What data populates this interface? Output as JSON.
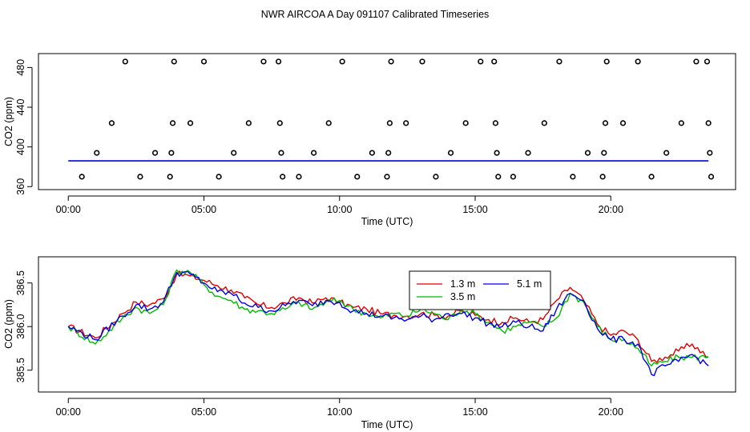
{
  "title": "NWR AIRCOA A  Day 091107  Calibrated Timeseries",
  "colors": {
    "red": "#e00000",
    "green": "#00bb00",
    "blue": "#0000e0",
    "axis": "#000000"
  },
  "chart_data": [
    {
      "type": "scatter",
      "xlabel": "Time (UTC)",
      "ylabel": "CO2 (ppm)",
      "xlim": [
        -1.1,
        24.6
      ],
      "ylim": [
        357,
        494
      ],
      "x_ticks": [
        0,
        5,
        10,
        15,
        20
      ],
      "x_tick_labels": [
        "00:00",
        "05:00",
        "10:00",
        "15:00",
        "20:00"
      ],
      "y_ticks": [
        360,
        400,
        440,
        480
      ],
      "y_tick_labels": [
        "360",
        "400",
        "440",
        "480"
      ],
      "reference_line": {
        "value": 386,
        "x_range": [
          0,
          23.6
        ],
        "color": "blue"
      },
      "points": [
        [
          0.5,
          370
        ],
        [
          1.05,
          394
        ],
        [
          1.6,
          424
        ],
        [
          2.1,
          486
        ],
        [
          2.65,
          370
        ],
        [
          3.2,
          394
        ],
        [
          3.75,
          370
        ],
        [
          3.8,
          394
        ],
        [
          3.85,
          424
        ],
        [
          3.9,
          486
        ],
        [
          4.5,
          424
        ],
        [
          5.0,
          486
        ],
        [
          5.55,
          370
        ],
        [
          6.1,
          394
        ],
        [
          6.65,
          424
        ],
        [
          7.2,
          486
        ],
        [
          7.75,
          486
        ],
        [
          7.8,
          424
        ],
        [
          7.85,
          394
        ],
        [
          7.9,
          370
        ],
        [
          8.5,
          370
        ],
        [
          9.05,
          394
        ],
        [
          9.6,
          424
        ],
        [
          10.1,
          486
        ],
        [
          10.65,
          370
        ],
        [
          11.2,
          394
        ],
        [
          11.75,
          370
        ],
        [
          11.8,
          394
        ],
        [
          11.85,
          424
        ],
        [
          11.9,
          486
        ],
        [
          12.45,
          424
        ],
        [
          13.05,
          486
        ],
        [
          13.55,
          370
        ],
        [
          14.1,
          394
        ],
        [
          14.65,
          424
        ],
        [
          15.2,
          486
        ],
        [
          15.7,
          486
        ],
        [
          15.75,
          424
        ],
        [
          15.8,
          394
        ],
        [
          15.85,
          370
        ],
        [
          16.4,
          370
        ],
        [
          16.95,
          394
        ],
        [
          17.55,
          424
        ],
        [
          18.1,
          486
        ],
        [
          18.6,
          370
        ],
        [
          19.15,
          394
        ],
        [
          19.7,
          370
        ],
        [
          19.75,
          394
        ],
        [
          19.8,
          424
        ],
        [
          19.85,
          486
        ],
        [
          20.45,
          424
        ],
        [
          21.0,
          486
        ],
        [
          21.5,
          370
        ],
        [
          22.05,
          394
        ],
        [
          22.6,
          424
        ],
        [
          23.15,
          486
        ],
        [
          23.55,
          486
        ],
        [
          23.6,
          424
        ],
        [
          23.65,
          394
        ],
        [
          23.7,
          370
        ]
      ]
    },
    {
      "type": "line",
      "xlabel": "Time (UTC)",
      "ylabel": "CO2 (ppm)",
      "xlim": [
        -1.1,
        24.6
      ],
      "ylim": [
        385.25,
        386.8
      ],
      "x_ticks": [
        0,
        5,
        10,
        15,
        20
      ],
      "x_tick_labels": [
        "00:00",
        "05:00",
        "10:00",
        "15:00",
        "20:00"
      ],
      "y_ticks": [
        385.5,
        386.0,
        386.5
      ],
      "y_tick_labels": [
        "385.5",
        "386.0",
        "386.5"
      ],
      "legend": {
        "position": "top-center",
        "entries": [
          "1.3 m",
          "5.1 m",
          "3.5 m"
        ]
      },
      "x": [
        0,
        1,
        2,
        2.5,
        3,
        3.5,
        4,
        4.5,
        5,
        5.5,
        6,
        6.5,
        7,
        7.5,
        8,
        8.5,
        9,
        9.5,
        10,
        10.5,
        11,
        11.5,
        12,
        12.5,
        13,
        13.5,
        14,
        14.5,
        15,
        15.5,
        16,
        16.5,
        17,
        17.5,
        18,
        18.5,
        19,
        19.5,
        20,
        20.5,
        21,
        21.5,
        22,
        22.5,
        23,
        23.6
      ],
      "series": [
        {
          "name": "1.3 m",
          "color": "red",
          "values": [
            386.0,
            385.87,
            386.15,
            386.28,
            386.25,
            386.32,
            386.6,
            386.58,
            386.53,
            386.47,
            386.42,
            386.33,
            386.25,
            386.22,
            386.27,
            386.33,
            386.27,
            386.33,
            386.28,
            386.22,
            386.2,
            386.15,
            386.13,
            386.12,
            386.15,
            386.13,
            386.12,
            386.18,
            386.13,
            386.08,
            386.05,
            386.1,
            386.05,
            386.08,
            386.3,
            386.45,
            386.3,
            386.03,
            385.9,
            385.95,
            385.85,
            385.6,
            385.65,
            385.72,
            385.8,
            385.65
          ]
        },
        {
          "name": "3.5 m",
          "color": "green",
          "values": [
            386.0,
            385.8,
            386.1,
            386.22,
            386.15,
            386.25,
            386.65,
            386.62,
            386.48,
            386.35,
            386.3,
            386.2,
            386.18,
            386.15,
            386.2,
            386.28,
            386.2,
            386.28,
            386.3,
            386.2,
            386.15,
            386.1,
            386.15,
            386.12,
            386.2,
            386.15,
            386.08,
            386.2,
            386.15,
            386.05,
            385.95,
            386.0,
            386.05,
            386.0,
            386.1,
            386.38,
            386.28,
            386.0,
            385.85,
            385.85,
            385.75,
            385.55,
            385.6,
            385.65,
            385.65,
            385.65
          ]
        },
        {
          "name": "5.1 m",
          "color": "blue",
          "values": [
            386.0,
            385.85,
            386.12,
            386.25,
            386.2,
            386.28,
            386.62,
            386.6,
            386.5,
            386.4,
            386.38,
            386.27,
            386.22,
            386.18,
            386.24,
            386.3,
            386.24,
            386.3,
            386.28,
            386.18,
            386.15,
            386.12,
            386.1,
            386.08,
            386.12,
            386.08,
            386.15,
            386.15,
            386.1,
            386.03,
            386.0,
            386.05,
            386.0,
            385.95,
            386.2,
            386.38,
            386.3,
            385.98,
            385.85,
            385.85,
            385.8,
            385.45,
            385.55,
            385.6,
            385.68,
            385.55
          ]
        }
      ]
    }
  ]
}
